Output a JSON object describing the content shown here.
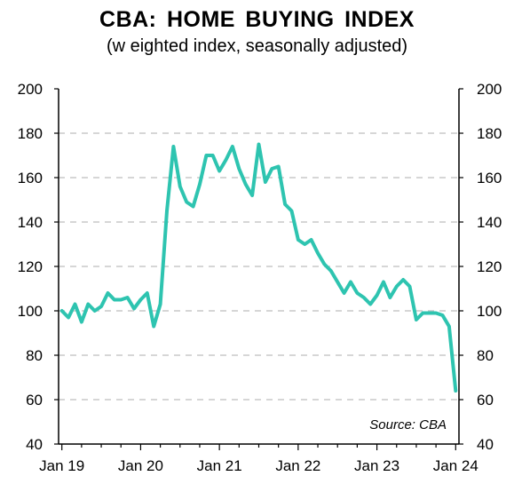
{
  "chart_data": {
    "type": "line",
    "title": "CBA: HOME BUYING INDEX",
    "subtitle": "(w eighted index, seasonally adjusted)",
    "source": "Source:  CBA",
    "xlabel": "",
    "ylabel": "",
    "ylim": [
      40,
      200
    ],
    "yticks": [
      40,
      60,
      80,
      100,
      120,
      140,
      160,
      180,
      200
    ],
    "y_tick_labels": [
      "40",
      "60",
      "80",
      "100",
      "120",
      "140",
      "160",
      "180",
      "200"
    ],
    "x_tick_labels": [
      "Jan 19",
      "Jan 20",
      "Jan 21",
      "Jan 22",
      "Jan 23",
      "Jan 24"
    ],
    "x_tick_index": [
      0,
      12,
      24,
      36,
      48,
      60
    ],
    "x_range_index": [
      -0.5,
      60.5
    ],
    "grid": "horizontal dashed",
    "secondary_y_axis": true,
    "line_color": "#2ec4b0",
    "series": [
      {
        "values": [
          100,
          97,
          103,
          95,
          103,
          100,
          102,
          108,
          105,
          105,
          106,
          101,
          105,
          108,
          93,
          103,
          145,
          174,
          156,
          149,
          147,
          157,
          170,
          170,
          163,
          168,
          174,
          164,
          157,
          152,
          175,
          158,
          164,
          165,
          148,
          145,
          132,
          130,
          132,
          126,
          121,
          118,
          113,
          108,
          113,
          108,
          106,
          103,
          107,
          113,
          106,
          111,
          114,
          111,
          96,
          99,
          99,
          99,
          98,
          93,
          64
        ]
      }
    ]
  }
}
